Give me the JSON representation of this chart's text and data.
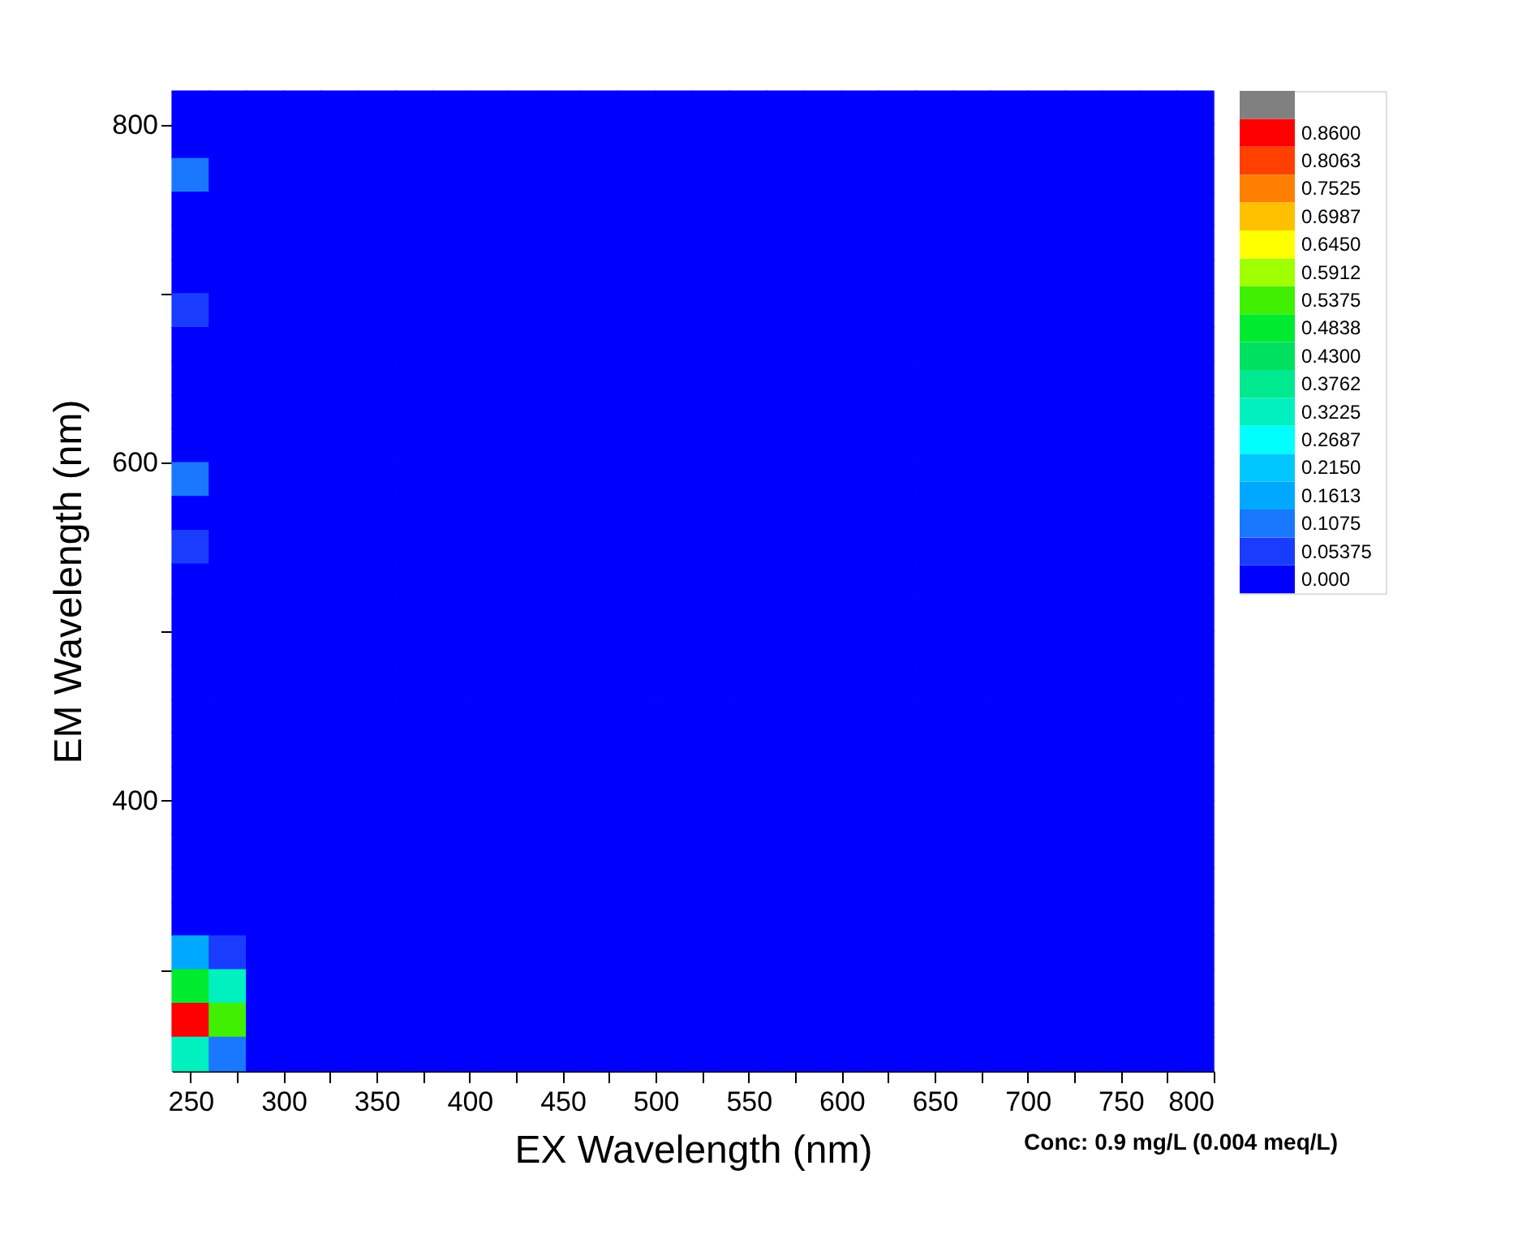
{
  "chart_data": {
    "type": "heatmap",
    "xlabel": "EX Wavelength (nm)",
    "ylabel": "EM Wavelength (nm)",
    "annotations": [
      "Conc: 0.9 mg/L (0.004 meq/L)"
    ],
    "x": [
      250,
      270,
      290,
      310,
      330,
      350,
      370,
      390,
      410,
      430,
      450,
      470,
      490,
      510,
      530,
      550,
      570,
      590,
      610,
      630,
      650,
      670,
      690,
      710,
      730,
      750,
      770,
      790
    ],
    "y": [
      810,
      790,
      770,
      750,
      730,
      710,
      690,
      670,
      650,
      630,
      610,
      590,
      570,
      550,
      530,
      510,
      490,
      470,
      450,
      430,
      410,
      390,
      370,
      350,
      330,
      310,
      290,
      270,
      250
    ],
    "xlim": [
      240,
      800
    ],
    "ylim": [
      240,
      820
    ],
    "xticks": [
      250,
      {
        "value": 275,
        "label": null
      },
      300,
      {
        "value": 325,
        "label": null
      },
      350,
      {
        "value": 375,
        "label": null
      },
      400,
      {
        "value": 425,
        "label": null
      },
      450,
      {
        "value": 475,
        "label": null
      },
      500,
      {
        "value": 525,
        "label": null
      },
      550,
      {
        "value": 575,
        "label": null
      },
      600,
      {
        "value": 625,
        "label": null
      },
      650,
      {
        "value": 675,
        "label": null
      },
      700,
      {
        "value": 725,
        "label": null
      },
      750,
      {
        "value": 775,
        "label": null
      },
      800
    ],
    "yticks": [
      {
        "value": 300,
        "label": null
      },
      400,
      {
        "value": 500,
        "label": null
      },
      600,
      {
        "value": 700,
        "label": null
      },
      800
    ],
    "cticks": [
      {
        "value": 0,
        "label": "0.000"
      },
      {
        "value": 0.05375,
        "label": "0.05375"
      },
      {
        "value": 0.1075,
        "label": "0.1075"
      },
      {
        "value": 0.1613,
        "label": "0.1613"
      },
      {
        "value": 0.215,
        "label": "0.2150"
      },
      {
        "value": 0.2687,
        "label": "0.2687"
      },
      {
        "value": 0.3225,
        "label": "0.3225"
      },
      {
        "value": 0.3762,
        "label": "0.3762"
      },
      {
        "value": 0.43,
        "label": "0.4300"
      },
      {
        "value": 0.4838,
        "label": "0.4838"
      },
      {
        "value": 0.5375,
        "label": "0.5375"
      },
      {
        "value": 0.5912,
        "label": "0.5912"
      },
      {
        "value": 0.645,
        "label": "0.6450"
      },
      {
        "value": 0.6987,
        "label": "0.6987"
      },
      {
        "value": 0.7525,
        "label": "0.7525"
      },
      {
        "value": 0.8063,
        "label": "0.8063"
      },
      {
        "value": 0.86,
        "label": "0.8600"
      }
    ],
    "colors": [
      "#0000ff",
      "#1a3cff",
      "#1a78ff",
      "#00a8ff",
      "#00c8ff",
      "#00ffff",
      "#00f0c0",
      "#00e890",
      "#00e060",
      "#00ea30",
      "#40f000",
      "#a0ff00",
      "#ffff00",
      "#ffc000",
      "#ff8000",
      "#ff4000",
      "#ff0000",
      "#808080"
    ],
    "cells": [
      [
        0,
        0,
        0,
        0,
        0,
        0,
        0,
        0,
        0,
        0,
        0,
        0,
        0,
        0,
        0,
        0,
        0,
        0,
        0,
        0,
        0,
        0,
        0,
        0,
        0,
        0,
        0,
        0
      ],
      [
        0,
        0,
        0,
        0,
        0,
        0,
        0,
        0,
        0,
        0,
        0,
        0,
        0,
        0,
        0,
        0,
        0,
        0,
        0,
        0,
        0,
        0,
        0,
        0,
        0,
        0,
        0,
        0
      ],
      [
        0.1075,
        0,
        0,
        0,
        0,
        0,
        0,
        0,
        0,
        0,
        0,
        0,
        0,
        0,
        0,
        0,
        0,
        0,
        0,
        0,
        0,
        0,
        0,
        0,
        0,
        0,
        0,
        0
      ],
      [
        0,
        0,
        0,
        0,
        0,
        0,
        0,
        0,
        0,
        0,
        0,
        0,
        0,
        0,
        0,
        0,
        0,
        0,
        0,
        0,
        0,
        0,
        0,
        0,
        0,
        0,
        0,
        0
      ],
      [
        0,
        0,
        0,
        0,
        0,
        0,
        0,
        0,
        0,
        0,
        0,
        0,
        0,
        0,
        0,
        0,
        0,
        0,
        0,
        0,
        0,
        0,
        0,
        0,
        0,
        0,
        0,
        0
      ],
      [
        0,
        0,
        0,
        0,
        0,
        0,
        0,
        0,
        0,
        0,
        0,
        0,
        0,
        0,
        0,
        0,
        0,
        0,
        0,
        0,
        0,
        0,
        0,
        0,
        0,
        0,
        0,
        0
      ],
      [
        0.05375,
        0,
        0,
        0,
        0,
        0,
        0,
        0,
        0,
        0,
        0,
        0,
        0,
        0,
        0,
        0,
        0,
        0,
        0,
        0,
        0,
        0,
        0,
        0,
        0,
        0,
        0,
        0
      ],
      [
        0,
        0,
        0,
        0,
        0,
        0,
        0,
        0,
        0,
        0,
        0,
        0,
        0,
        0,
        0,
        0,
        0,
        0,
        0,
        0,
        0,
        0,
        0,
        0,
        0,
        0,
        0,
        0
      ],
      [
        0,
        0,
        0,
        0,
        0,
        0,
        0,
        0,
        0,
        0,
        0,
        0,
        0,
        0,
        0,
        0,
        0,
        0,
        0,
        0,
        0,
        0,
        0,
        0,
        0,
        0,
        0,
        0
      ],
      [
        0,
        0,
        0,
        0,
        0,
        0,
        0,
        0,
        0,
        0,
        0,
        0,
        0,
        0,
        0,
        0,
        0,
        0,
        0,
        0,
        0,
        0,
        0,
        0,
        0,
        0,
        0,
        0
      ],
      [
        0,
        0,
        0,
        0,
        0,
        0,
        0,
        0,
        0,
        0,
        0,
        0,
        0,
        0,
        0,
        0,
        0,
        0,
        0,
        0,
        0,
        0,
        0,
        0,
        0,
        0,
        0,
        0
      ],
      [
        0.1075,
        0,
        0,
        0,
        0,
        0,
        0,
        0,
        0,
        0,
        0,
        0,
        0,
        0,
        0,
        0,
        0,
        0,
        0,
        0,
        0,
        0,
        0,
        0,
        0,
        0,
        0,
        0
      ],
      [
        0,
        0,
        0,
        0,
        0,
        0,
        0,
        0,
        0,
        0,
        0,
        0,
        0,
        0,
        0,
        0,
        0,
        0,
        0,
        0,
        0,
        0,
        0,
        0,
        0,
        0,
        0,
        0
      ],
      [
        0.05375,
        0,
        0,
        0,
        0,
        0,
        0,
        0,
        0,
        0,
        0,
        0,
        0,
        0,
        0,
        0,
        0,
        0,
        0,
        0,
        0,
        0,
        0,
        0,
        0,
        0,
        0,
        0
      ],
      [
        0,
        0,
        0,
        0,
        0,
        0,
        0,
        0,
        0,
        0,
        0,
        0,
        0,
        0,
        0,
        0,
        0,
        0,
        0,
        0,
        0,
        0,
        0,
        0,
        0,
        0,
        0,
        0
      ],
      [
        0,
        0,
        0,
        0,
        0,
        0,
        0,
        0,
        0,
        0,
        0,
        0,
        0,
        0,
        0,
        0,
        0,
        0,
        0,
        0,
        0,
        0,
        0,
        0,
        0,
        0,
        0,
        0
      ],
      [
        0,
        0,
        0,
        0,
        0,
        0,
        0,
        0,
        0,
        0,
        0,
        0,
        0,
        0,
        0,
        0,
        0,
        0,
        0,
        0,
        0,
        0,
        0,
        0,
        0,
        0,
        0,
        0
      ],
      [
        0,
        0,
        0,
        0,
        0,
        0,
        0,
        0,
        0,
        0,
        0,
        0,
        0,
        0,
        0,
        0,
        0,
        0,
        0,
        0,
        0,
        0,
        0,
        0,
        0,
        0,
        0,
        0
      ],
      [
        0,
        0,
        0,
        0,
        0,
        0,
        0,
        0,
        0,
        0,
        0,
        0,
        0,
        0,
        0,
        0,
        0,
        0,
        0,
        0,
        0,
        0,
        0,
        0,
        0,
        0,
        0,
        0
      ],
      [
        0,
        0,
        0,
        0,
        0,
        0,
        0,
        0,
        0,
        0,
        0,
        0,
        0,
        0,
        0,
        0,
        0,
        0,
        0,
        0,
        0,
        0,
        0,
        0,
        0,
        0,
        0,
        0
      ],
      [
        0,
        0,
        0,
        0,
        0,
        0,
        0,
        0,
        0,
        0,
        0,
        0,
        0,
        0,
        0,
        0,
        0,
        0,
        0,
        0,
        0,
        0,
        0,
        0,
        0,
        0,
        0,
        0
      ],
      [
        0,
        0,
        0,
        0,
        0,
        0,
        0,
        0,
        0,
        0,
        0,
        0,
        0,
        0,
        0,
        0,
        0,
        0,
        0,
        0,
        0,
        0,
        0,
        0,
        0,
        0,
        0,
        0
      ],
      [
        0,
        0,
        0,
        0,
        0,
        0,
        0,
        0,
        0,
        0,
        0,
        0,
        0,
        0,
        0,
        0,
        0,
        0,
        0,
        0,
        0,
        0,
        0,
        0,
        0,
        0,
        0,
        0
      ],
      [
        0,
        0,
        0,
        0,
        0,
        0,
        0,
        0,
        0,
        0,
        0,
        0,
        0,
        0,
        0,
        0,
        0,
        0,
        0,
        0,
        0,
        0,
        0,
        0,
        0,
        0,
        0,
        0
      ],
      [
        0,
        0,
        0,
        0,
        0,
        0,
        0,
        0,
        0,
        0,
        0,
        0,
        0,
        0,
        0,
        0,
        0,
        0,
        0,
        0,
        0,
        0,
        0,
        0,
        0,
        0,
        0,
        0
      ],
      [
        0.1613,
        0.05375,
        0,
        0,
        0,
        0,
        0,
        0,
        0,
        0,
        0,
        0,
        0,
        0,
        0,
        0,
        0,
        0,
        0,
        0,
        0,
        0,
        0,
        0,
        0,
        0,
        0,
        0
      ],
      [
        0.4838,
        0.3225,
        0,
        0,
        0,
        0,
        0,
        0,
        0,
        0,
        0,
        0,
        0,
        0,
        0,
        0,
        0,
        0,
        0,
        0,
        0,
        0,
        0,
        0,
        0,
        0,
        0,
        0
      ],
      [
        0.86,
        0.5375,
        0,
        0,
        0,
        0,
        0,
        0,
        0,
        0,
        0,
        0,
        0,
        0,
        0,
        0,
        0,
        0,
        0,
        0,
        0,
        0,
        0,
        0,
        0,
        0,
        0,
        0
      ],
      [
        0.3225,
        0.1075,
        0,
        0,
        0,
        0,
        0,
        0,
        0,
        0,
        0,
        0,
        0,
        0,
        0,
        0,
        0,
        0,
        0,
        0,
        0,
        0,
        0,
        0,
        0,
        0,
        0,
        0
      ]
    ]
  }
}
